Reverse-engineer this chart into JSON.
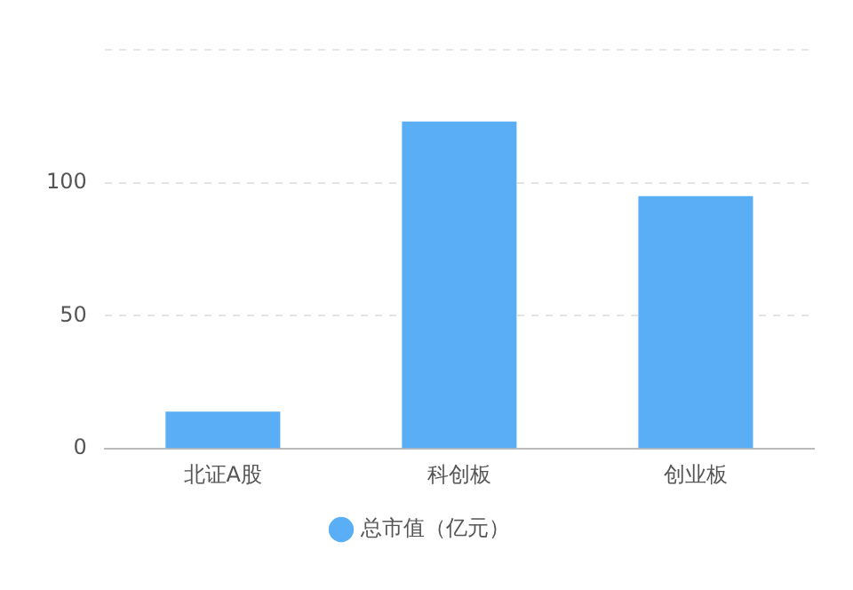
{
  "chart_data": {
    "type": "bar",
    "categories": [
      "北证A股",
      "科创板",
      "创业板"
    ],
    "series": [
      {
        "name": "总市值（亿元）",
        "color": "#5aaef5",
        "values": [
          14,
          123,
          95
        ]
      }
    ],
    "ylim": [
      0,
      150
    ],
    "yticks": [
      0,
      50,
      100,
      {
        "value": 150,
        "label": null
      }
    ],
    "grid": "y",
    "legend": "bottom"
  }
}
